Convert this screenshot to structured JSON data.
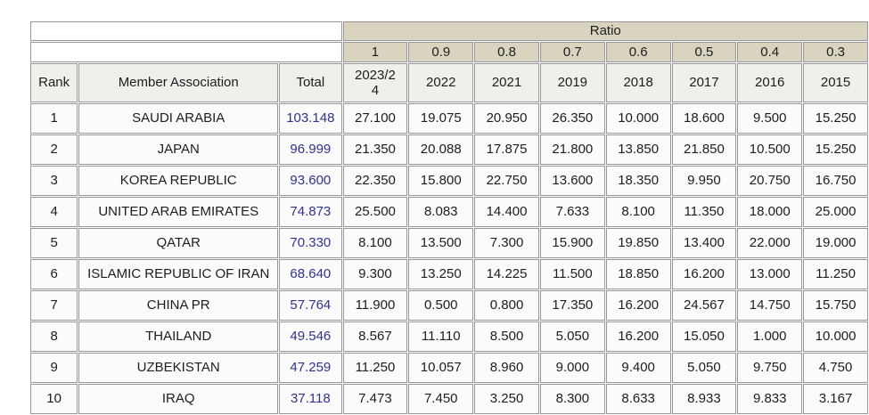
{
  "table": {
    "ratio_label": "Ratio",
    "ratios": [
      "1",
      "0.9",
      "0.8",
      "0.7",
      "0.6",
      "0.5",
      "0.4",
      "0.3"
    ],
    "columns": [
      "Rank",
      "Member Association",
      "Total"
    ],
    "years": [
      "2023/24",
      "2022",
      "2021",
      "2019",
      "2018",
      "2017",
      "2016",
      "2015"
    ],
    "rows": [
      {
        "rank": "1",
        "association": "SAUDI ARABIA",
        "total": "103.148",
        "values": [
          "27.100",
          "19.075",
          "20.950",
          "26.350",
          "10.000",
          "18.600",
          "9.500",
          "15.250"
        ]
      },
      {
        "rank": "2",
        "association": "JAPAN",
        "total": "96.999",
        "values": [
          "21.350",
          "20.088",
          "17.875",
          "21.800",
          "13.850",
          "21.850",
          "10.500",
          "15.250"
        ]
      },
      {
        "rank": "3",
        "association": "KOREA REPUBLIC",
        "total": "93.600",
        "values": [
          "22.350",
          "15.800",
          "22.750",
          "13.600",
          "18.350",
          "9.950",
          "20.750",
          "16.750"
        ]
      },
      {
        "rank": "4",
        "association": "UNITED ARAB EMIRATES",
        "total": "74.873",
        "values": [
          "25.500",
          "8.083",
          "14.400",
          "7.633",
          "8.100",
          "11.350",
          "18.000",
          "25.000"
        ]
      },
      {
        "rank": "5",
        "association": "QATAR",
        "total": "70.330",
        "values": [
          "8.100",
          "13.500",
          "7.300",
          "15.900",
          "19.850",
          "13.400",
          "22.000",
          "19.000"
        ]
      },
      {
        "rank": "6",
        "association": "ISLAMIC REPUBLIC OF IRAN",
        "total": "68.640",
        "values": [
          "9.300",
          "13.250",
          "14.225",
          "11.500",
          "18.850",
          "16.200",
          "13.000",
          "11.250"
        ]
      },
      {
        "rank": "7",
        "association": "CHINA PR",
        "total": "57.764",
        "values": [
          "11.900",
          "0.500",
          "0.800",
          "17.350",
          "16.200",
          "24.567",
          "14.750",
          "15.750"
        ]
      },
      {
        "rank": "8",
        "association": "THAILAND",
        "total": "49.546",
        "values": [
          "8.567",
          "11.110",
          "8.500",
          "5.050",
          "16.200",
          "15.050",
          "1.000",
          "10.000"
        ]
      },
      {
        "rank": "9",
        "association": "UZBEKISTAN",
        "total": "47.259",
        "values": [
          "11.250",
          "10.057",
          "8.960",
          "9.000",
          "9.400",
          "5.050",
          "9.750",
          "4.750"
        ]
      },
      {
        "rank": "10",
        "association": "IRAQ",
        "total": "37.118",
        "values": [
          "7.473",
          "7.450",
          "3.250",
          "8.300",
          "8.633",
          "8.933",
          "9.833",
          "3.167"
        ]
      }
    ]
  },
  "colors": {
    "ratio_header_bg": "#d8d4c0",
    "column_header_bg": "#f0efec",
    "cell_bg": "#fbfbfb",
    "total_text": "#32328c",
    "border": "#979797"
  }
}
